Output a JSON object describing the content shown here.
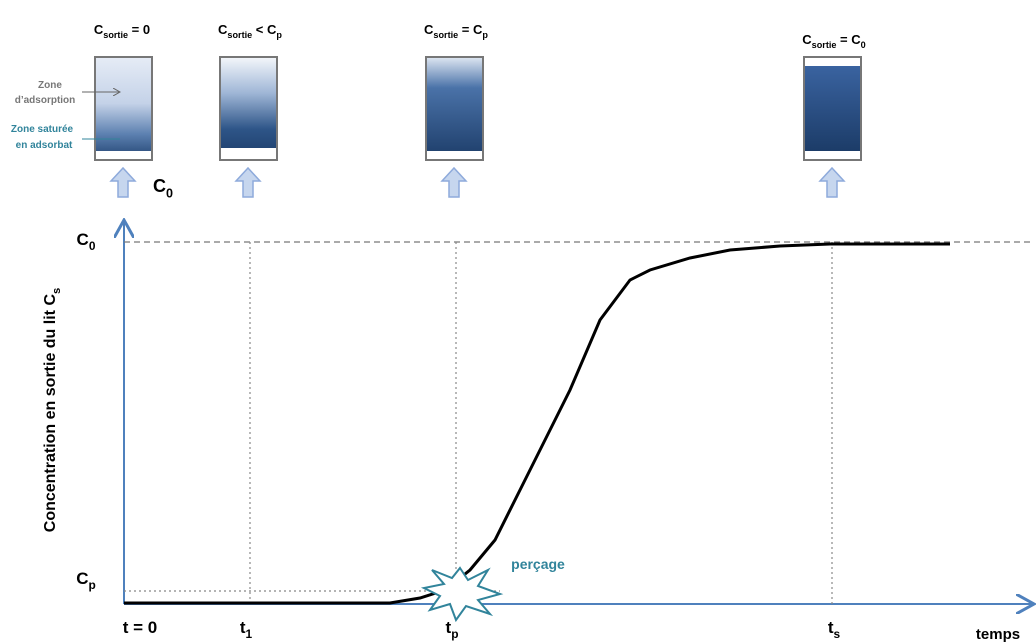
{
  "columns": [
    {
      "label": [
        {
          "t": "C"
        },
        {
          "t": "sortie",
          "sub": true
        },
        {
          "t": " = 0"
        }
      ]
    },
    {
      "label": [
        {
          "t": "C"
        },
        {
          "t": "sortie",
          "sub": true
        },
        {
          "t": " < C"
        },
        {
          "t": "p",
          "sub": true
        }
      ]
    },
    {
      "label": [
        {
          "t": "C"
        },
        {
          "t": "sortie",
          "sub": true
        },
        {
          "t": " = C"
        },
        {
          "t": "p",
          "sub": true
        }
      ]
    },
    {
      "label": [
        {
          "t": "C"
        },
        {
          "t": "sortie",
          "sub": true
        },
        {
          "t": " = C"
        },
        {
          "t": "0",
          "sub": true
        }
      ]
    }
  ],
  "zones": {
    "adsorption": [
      "Zone",
      "d’adsorption"
    ],
    "saturated": [
      "Zone saturée",
      "en adsorbat"
    ]
  },
  "feed": [
    {
      "t": "C"
    },
    {
      "t": "0",
      "sub": true
    }
  ],
  "axes": {
    "y_label": [
      {
        "t": "Concentration en sortie du lit C"
      },
      {
        "t": "s",
        "sub": true
      }
    ],
    "y_ticks": [
      [
        {
          "t": "C"
        },
        {
          "t": "0",
          "sub": true
        }
      ],
      [
        {
          "t": "C"
        },
        {
          "t": "p",
          "sub": true
        }
      ]
    ],
    "x_ticks": [
      [
        {
          "t": "t = 0"
        }
      ],
      [
        {
          "t": "t"
        },
        {
          "t": "1",
          "sub": true
        }
      ],
      [
        {
          "t": "t"
        },
        {
          "t": "p",
          "sub": true
        }
      ],
      [
        {
          "t": "t"
        },
        {
          "t": "s",
          "sub": true
        }
      ]
    ],
    "x_label": "temps"
  },
  "breakthrough": "perçage"
}
